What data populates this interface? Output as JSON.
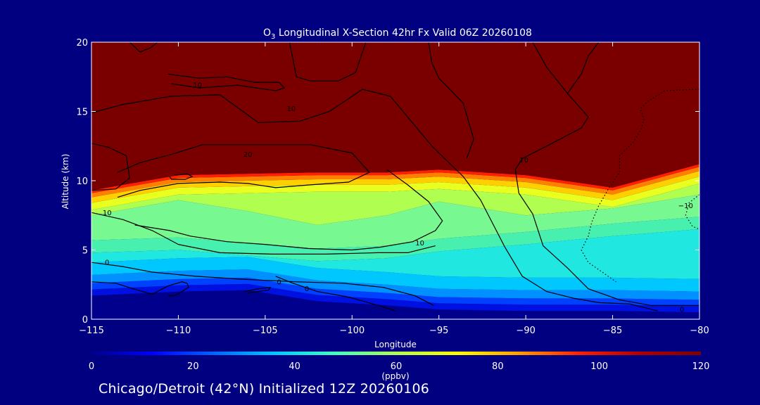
{
  "chart_data": {
    "type": "heatmap",
    "title": "O3 Longitudinal X-Section 42hr  Fx Valid 06Z 20260108",
    "title_prefix": "O",
    "title_subscript": "3",
    "title_rest": " Longitudinal X-Section 42hr  Fx Valid 06Z 20260108",
    "xlabel": "Longitude",
    "ylabel": "Altitude (km)",
    "xlim": [
      -115,
      -80
    ],
    "ylim": [
      0,
      20
    ],
    "x_ticks": [
      -115,
      -110,
      -105,
      -100,
      -95,
      -90,
      -85,
      -80
    ],
    "x_tick_labels": [
      "−115",
      "−110",
      "−105",
      "−100",
      "−95",
      "−90",
      "−85",
      "−80"
    ],
    "y_ticks": [
      0,
      5,
      10,
      15,
      20
    ],
    "y_tick_labels": [
      "0",
      "5",
      "10",
      "15",
      "20"
    ],
    "colorbar": {
      "label": "(ppbv)",
      "range": [
        0,
        120
      ],
      "ticks": [
        0,
        20,
        40,
        60,
        80,
        100,
        120
      ],
      "tick_labels": [
        "0",
        "20",
        "40",
        "60",
        "80",
        "100",
        "120"
      ],
      "colors": [
        "#00008c",
        "#0000ff",
        "#0064ff",
        "#00c8ff",
        "#40ffc0",
        "#b0ff50",
        "#ffff00",
        "#ffa000",
        "#ff2000",
        "#b00000",
        "#800000"
      ]
    },
    "field_columns": [
      {
        "x": -115,
        "ground": 1.7,
        "tropopause": 9.3,
        "y_cyan": 4.8,
        "y_mid": 7.5
      },
      {
        "x": -110,
        "ground": 2.0,
        "tropopause": 10.4,
        "y_cyan": 5.0,
        "y_mid": 8.6
      },
      {
        "x": -106,
        "ground": 2.1,
        "tropopause": 10.5,
        "y_cyan": 4.6,
        "y_mid": 7.8
      },
      {
        "x": -102,
        "ground": 1.3,
        "tropopause": 10.6,
        "y_cyan": 4.2,
        "y_mid": 6.8
      },
      {
        "x": -98,
        "ground": 1.0,
        "tropopause": 10.6,
        "y_cyan": 4.4,
        "y_mid": 7.5
      },
      {
        "x": -95,
        "ground": 0.7,
        "tropopause": 10.8,
        "y_cyan": 4.9,
        "y_mid": 8.5
      },
      {
        "x": -90,
        "ground": 0.6,
        "tropopause": 10.4,
        "y_cyan": 5.4,
        "y_mid": 7.5
      },
      {
        "x": -85,
        "ground": 0.6,
        "tropopause": 9.5,
        "y_cyan": 6.0,
        "y_mid": 8.0
      },
      {
        "x": -80,
        "ground": 0.5,
        "tropopause": 11.2,
        "y_cyan": 6.5,
        "y_mid": 9.0
      }
    ],
    "contours": [
      {
        "level": "10",
        "style": "solid",
        "points": [
          [
            -115,
            14.9
          ],
          [
            -113.2,
            15.5
          ],
          [
            -110.4,
            16.1
          ],
          [
            -107.6,
            16.2
          ],
          [
            -105.4,
            14.2
          ],
          [
            -103,
            14.3
          ],
          [
            -101.3,
            15.0
          ],
          [
            -99.4,
            16.6
          ],
          [
            -97.8,
            16.1
          ],
          [
            -95.4,
            12.5
          ],
          [
            -93.6,
            10.3
          ],
          [
            -92.6,
            8.6
          ],
          [
            -91.2,
            5.2
          ],
          [
            -90.2,
            3.1
          ],
          [
            -88.8,
            2.0
          ],
          [
            -87.2,
            1.5
          ],
          [
            -85.8,
            1.2
          ],
          [
            -84,
            1.1
          ],
          [
            -82.4,
            0.6
          ]
        ]
      },
      {
        "level": "20",
        "style": "solid",
        "points": [
          [
            -113.5,
            10.6
          ],
          [
            -112.2,
            11.3
          ],
          [
            -110.4,
            11.9
          ],
          [
            -108.6,
            12.6
          ],
          [
            -105.4,
            12.6
          ],
          [
            -102.4,
            12.6
          ],
          [
            -100,
            12.0
          ],
          [
            -99,
            10.6
          ],
          [
            -100.2,
            9.9
          ],
          [
            -102.4,
            9.7
          ],
          [
            -104.4,
            9.5
          ],
          [
            -106,
            9.8
          ],
          [
            -107.6,
            9.9
          ],
          [
            -110,
            9.8
          ],
          [
            -112.2,
            9.3
          ],
          [
            -113.5,
            8.8
          ]
        ]
      },
      {
        "level": "10",
        "style": "solid",
        "points": [
          [
            -110.6,
            17.7
          ],
          [
            -108.8,
            17.4
          ],
          [
            -107.2,
            17.5
          ],
          [
            -105.6,
            17.1
          ],
          [
            -104.2,
            17.1
          ],
          [
            -103.9,
            16.7
          ],
          [
            -104.4,
            16.5
          ],
          [
            -106.6,
            16.9
          ],
          [
            -108.8,
            16.7
          ],
          [
            -110.4,
            17.0
          ]
        ]
      },
      {
        "level": "10",
        "style": "solid",
        "points": [
          [
            -115,
            12.7
          ],
          [
            -114,
            12.4
          ],
          [
            -113,
            11.8
          ],
          [
            -112.8,
            10.2
          ],
          [
            -113.6,
            9.4
          ],
          [
            -115,
            9.3
          ]
        ]
      },
      {
        "level": "",
        "style": "solid",
        "points": [
          [
            -110.2,
            10.4
          ],
          [
            -109.5,
            10.5
          ],
          [
            -109.2,
            10.3
          ],
          [
            -109.6,
            10.1
          ],
          [
            -110.4,
            10.1
          ],
          [
            -110.5,
            10.3
          ]
        ]
      },
      {
        "level": "10",
        "style": "solid",
        "points": [
          [
            -112.5,
            6.8
          ],
          [
            -110.5,
            6.4
          ],
          [
            -109.3,
            6.0
          ],
          [
            -107.2,
            5.6
          ],
          [
            -105,
            5.4
          ],
          [
            -102.5,
            5.1
          ],
          [
            -100,
            5.0
          ],
          [
            -98.4,
            5.2
          ],
          [
            -96.5,
            5.6
          ],
          [
            -95.2,
            6.4
          ],
          [
            -94.8,
            7.1
          ],
          [
            -95.6,
            8.5
          ],
          [
            -96.8,
            9.7
          ],
          [
            -98,
            10.8
          ]
        ]
      },
      {
        "level": "10",
        "style": "solid",
        "points": [
          [
            -115,
            7.7
          ],
          [
            -113.2,
            7.2
          ],
          [
            -111.5,
            6.4
          ],
          [
            -110,
            5.4
          ],
          [
            -107.6,
            4.8
          ],
          [
            -104.6,
            4.7
          ],
          [
            -101.5,
            4.7
          ],
          [
            -98.5,
            4.8
          ],
          [
            -96.8,
            4.8
          ],
          [
            -95.2,
            5.3
          ]
        ]
      },
      {
        "level": "0",
        "style": "solid",
        "points": [
          [
            -115,
            4.1
          ],
          [
            -113.2,
            3.8
          ],
          [
            -111.5,
            3.4
          ],
          [
            -109,
            3.1
          ],
          [
            -106.5,
            2.9
          ],
          [
            -103.2,
            2.7
          ],
          [
            -100.5,
            2.6
          ],
          [
            -98.2,
            2.3
          ],
          [
            -96.4,
            1.7
          ],
          [
            -95.3,
            1.0
          ]
        ]
      },
      {
        "level": "0",
        "style": "solid",
        "points": [
          [
            -115,
            2.7
          ],
          [
            -113.6,
            2.6
          ],
          [
            -112.6,
            2.2
          ],
          [
            -111.5,
            1.8
          ],
          [
            -110.6,
            2.4
          ],
          [
            -109.8,
            2.7
          ],
          [
            -109.5,
            2.6
          ],
          [
            -109.4,
            2.3
          ],
          [
            -110.2,
            1.7
          ],
          [
            -110.6,
            1.7
          ]
        ]
      },
      {
        "level": "",
        "style": "solid",
        "points": [
          [
            -106.2,
            2.0
          ],
          [
            -105.4,
            2.2
          ],
          [
            -104.7,
            2.3
          ],
          [
            -104.8,
            2.1
          ],
          [
            -106,
            1.9
          ]
        ]
      },
      {
        "level": "0",
        "style": "solid",
        "points": [
          [
            -104.4,
            3.1
          ],
          [
            -103.4,
            2.6
          ],
          [
            -102,
            2.0
          ],
          [
            -100.2,
            1.6
          ],
          [
            -98.5,
            1.0
          ],
          [
            -97.5,
            0.6
          ]
        ]
      },
      {
        "level": "",
        "style": "solid",
        "points": [
          [
            -89.6,
            20
          ],
          [
            -88.8,
            18.2
          ],
          [
            -87.6,
            16.3
          ],
          [
            -86.4,
            14.6
          ],
          [
            -86.8,
            13.8
          ],
          [
            -88.8,
            12.5
          ],
          [
            -90.2,
            11.6
          ],
          [
            -90.6,
            10.8
          ],
          [
            -90.4,
            9.1
          ],
          [
            -89.6,
            7.6
          ],
          [
            -89,
            5.3
          ],
          [
            -87.6,
            3.7
          ],
          [
            -86.4,
            2.2
          ],
          [
            -84.6,
            1.4
          ],
          [
            -82.8,
            1.0
          ],
          [
            -81,
            1.0
          ],
          [
            -80,
            1.0
          ]
        ]
      },
      {
        "level": "",
        "style": "solid",
        "points": [
          [
            -85.8,
            20
          ],
          [
            -86.4,
            19.0
          ],
          [
            -86.8,
            17.7
          ],
          [
            -87.6,
            16.3
          ]
        ]
      },
      {
        "level": "",
        "style": "solid",
        "points": [
          [
            -103.6,
            20
          ],
          [
            -103.2,
            17.5
          ],
          [
            -102.4,
            17.2
          ],
          [
            -100.8,
            17.2
          ],
          [
            -99.8,
            17.8
          ],
          [
            -99.2,
            20
          ]
        ]
      },
      {
        "level": "",
        "style": "solid",
        "points": [
          [
            -112.8,
            20
          ],
          [
            -112.2,
            19.3
          ],
          [
            -111.6,
            19.6
          ],
          [
            -111.2,
            20
          ]
        ]
      },
      {
        "level": "",
        "style": "solid",
        "points": [
          [
            -95.6,
            20
          ],
          [
            -95.4,
            18.5
          ],
          [
            -95,
            17.4
          ],
          [
            -93.6,
            15.6
          ],
          [
            -93,
            13.0
          ],
          [
            -93.4,
            11.6
          ]
        ]
      },
      {
        "level": "-10",
        "style": "dotted",
        "points": [
          [
            -80,
            16.6
          ],
          [
            -82,
            16.5
          ],
          [
            -83,
            15.7
          ],
          [
            -83.4,
            15.2
          ],
          [
            -83.2,
            14.4
          ],
          [
            -83.4,
            13.6
          ],
          [
            -83.8,
            12.8
          ],
          [
            -84.6,
            11.8
          ],
          [
            -84.6,
            10.6
          ],
          [
            -85.2,
            9.5
          ],
          [
            -85.8,
            8.2
          ],
          [
            -86.2,
            7.0
          ],
          [
            -86.4,
            6.0
          ],
          [
            -86.8,
            5.0
          ],
          [
            -86.4,
            4.1
          ],
          [
            -85.6,
            3.4
          ],
          [
            -84.8,
            2.7
          ]
        ]
      },
      {
        "level": "-10",
        "style": "dotted",
        "points": [
          [
            -80,
            9.0
          ],
          [
            -80.6,
            8.4
          ],
          [
            -80.8,
            7.5
          ],
          [
            -80.4,
            6.7
          ],
          [
            -80,
            6.5
          ]
        ]
      }
    ],
    "contour_labels": [
      {
        "text": "10",
        "x": -108.9,
        "y": 16.9
      },
      {
        "text": "10",
        "x": -103.5,
        "y": 15.2
      },
      {
        "text": "20",
        "x": -106,
        "y": 11.9
      },
      {
        "text": "10",
        "x": -90.1,
        "y": 11.5
      },
      {
        "text": "10",
        "x": -114.1,
        "y": 7.7
      },
      {
        "text": "10",
        "x": -96.1,
        "y": 5.5
      },
      {
        "text": "0",
        "x": -114.1,
        "y": 4.1
      },
      {
        "text": "0",
        "x": -104.2,
        "y": 2.7
      },
      {
        "text": "0",
        "x": -102.6,
        "y": 2.2
      },
      {
        "text": "0",
        "x": -81.0,
        "y": 0.7
      },
      {
        "text": "−10",
        "x": -80.8,
        "y": 8.2
      }
    ]
  },
  "footer": {
    "text": "Chicago/Detroit (42°N) Initialized 12Z 20260106"
  }
}
